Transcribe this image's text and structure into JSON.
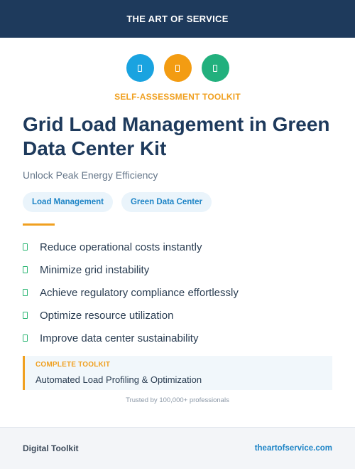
{
  "header": {
    "brand": "THE ART OF SERVICE"
  },
  "icons": [
    {
      "name": "blue-icon",
      "color": "#1aa3e0"
    },
    {
      "name": "orange-icon",
      "color": "#f39c12"
    },
    {
      "name": "green-icon",
      "color": "#22b07d"
    }
  ],
  "kicker": "SELF-ASSESSMENT TOOLKIT",
  "title": "Grid Load Management in Green Data Center Kit",
  "subtitle": "Unlock Peak Energy Efficiency",
  "tags": [
    "Load Management",
    "Green Data Center"
  ],
  "bullets": [
    "Reduce operational costs instantly",
    "Minimize grid instability",
    "Achieve regulatory compliance effortlessly",
    "Optimize resource utilization",
    "Improve data center sustainability"
  ],
  "callout": {
    "label": "COMPLETE TOOLKIT",
    "text": "Automated Load Profiling & Optimization"
  },
  "trusted": "Trusted by 100,000+ professionals",
  "footer": {
    "left": "Digital Toolkit",
    "right": "theartofservice.com"
  },
  "colors": {
    "navy": "#1e3a5c",
    "accent_orange": "#f0a020",
    "accent_blue": "#1d84c6",
    "check_green": "#2bb673"
  }
}
